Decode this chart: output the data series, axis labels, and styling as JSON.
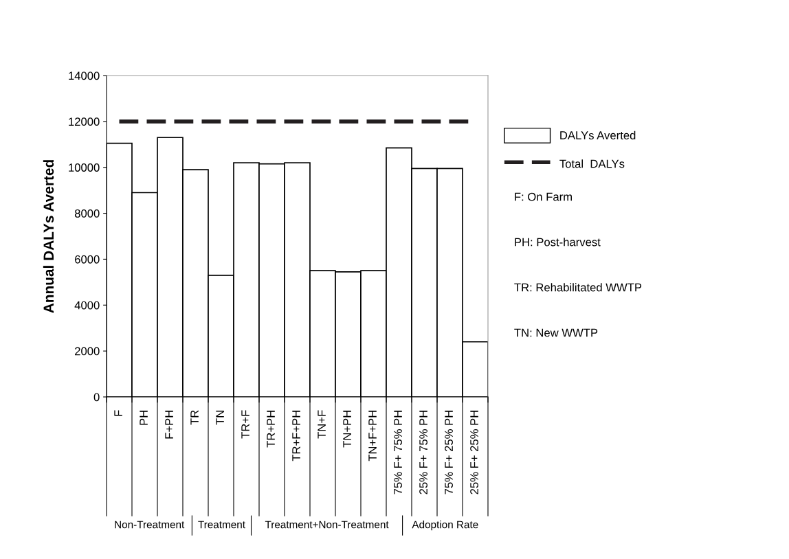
{
  "chart_data": {
    "type": "bar",
    "ylabel": "Annual DALYs Averted",
    "categories": [
      "F",
      "PH",
      "F+PH",
      "TR",
      "TN",
      "TR+F",
      "TR+PH",
      "TR+F+PH",
      "TN+F",
      "TN+PH",
      "TN+F+PH",
      "75% F+ 75% PH",
      "25% F+ 75% PH",
      "75% F+ 25% PH",
      "25% F+ 25% PH"
    ],
    "series": [
      {
        "name": "DALYs Averted",
        "color": "#ffffff",
        "values": [
          11050,
          8900,
          11300,
          9900,
          5300,
          10200,
          10150,
          10200,
          5500,
          5450,
          5500,
          10850,
          9950,
          9950,
          2400
        ]
      }
    ],
    "ylim": [
      0,
      14000
    ],
    "yticks": [
      0,
      2000,
      4000,
      6000,
      8000,
      10000,
      12000,
      14000
    ],
    "ref_lines": [
      {
        "axis": "y",
        "value": 12000,
        "label": "Total  DALYs",
        "color": "#231f20",
        "line_style": "dashed"
      }
    ],
    "legend": "right",
    "grid": false,
    "annotations": [
      "Non-Treatment",
      "Treatment",
      "Treatment+Non-Treatment",
      "Adoption Rate",
      "F: On Farm",
      "PH: Post-harvest",
      "TR: Rehabilitated WWTP",
      "TN: New WWTP"
    ]
  }
}
